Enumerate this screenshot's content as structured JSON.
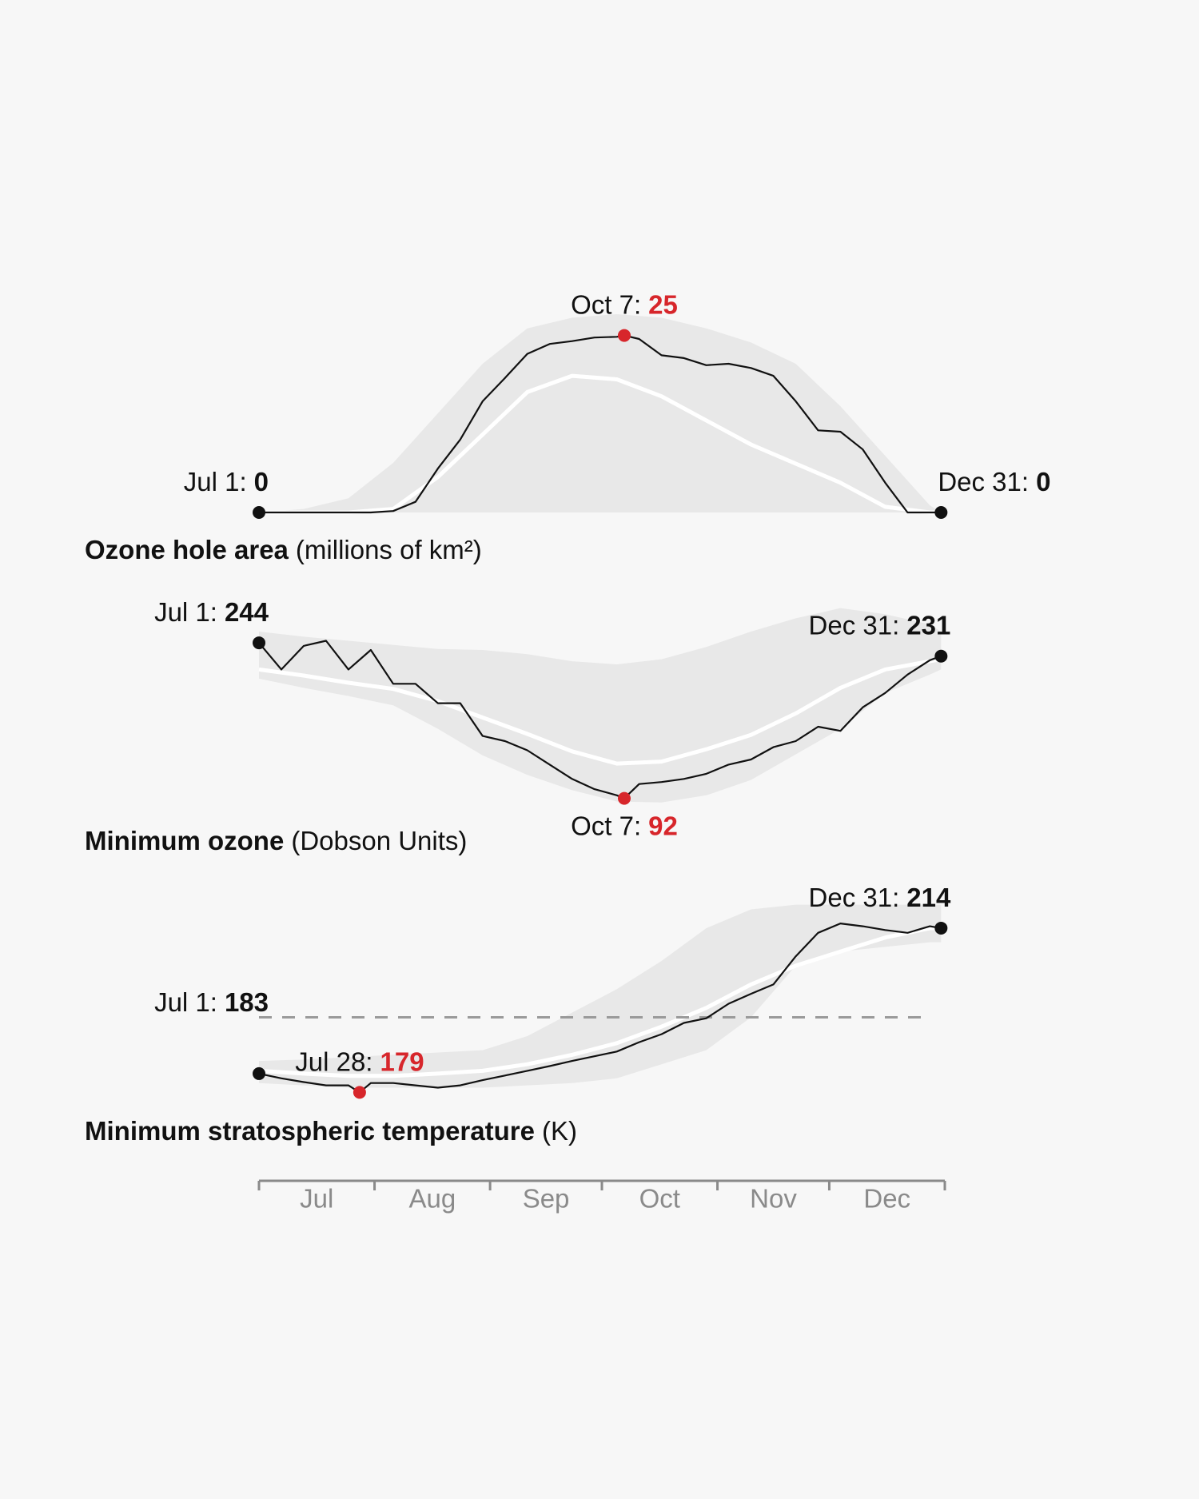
{
  "chart_data": [
    {
      "type": "line",
      "title": "Ozone hole area",
      "unit": "(millions of km²)",
      "color": "#111111",
      "xlim": [
        0,
        184
      ],
      "ylim": [
        0,
        28
      ],
      "x": [
        0,
        6,
        12,
        18,
        24,
        30,
        36,
        42,
        48,
        54,
        60,
        66,
        72,
        78,
        84,
        90,
        96,
        98,
        102,
        108,
        114,
        120,
        126,
        132,
        138,
        144,
        150,
        156,
        162,
        168,
        174,
        180,
        183
      ],
      "values": [
        0,
        0,
        0,
        0,
        0,
        0,
        0.2,
        1.5,
        6.2,
        10.3,
        15.7,
        19,
        22.4,
        23.8,
        24.2,
        24.7,
        24.8,
        25,
        24.5,
        22.2,
        21.8,
        20.8,
        21,
        20.4,
        19.3,
        15.7,
        11.6,
        11.4,
        8.9,
        4.2,
        0,
        0,
        0
      ],
      "band": {
        "color": "#e8e8e8",
        "x": [
          0,
          12,
          24,
          36,
          48,
          60,
          72,
          84,
          96,
          108,
          120,
          132,
          144,
          156,
          168,
          180,
          183
        ],
        "lower": [
          0,
          0,
          0,
          0,
          0,
          0,
          0,
          0,
          0,
          0,
          0,
          0,
          0,
          0,
          0,
          0,
          0
        ],
        "upper": [
          0,
          0.5,
          2,
          7,
          14,
          21,
          26,
          27.5,
          28,
          27.5,
          26,
          24,
          21,
          15,
          8,
          1,
          0
        ]
      },
      "mean": {
        "color": "#ffffff",
        "x": [
          0,
          12,
          24,
          36,
          48,
          60,
          72,
          84,
          96,
          108,
          120,
          132,
          144,
          156,
          168,
          180,
          183
        ],
        "values": [
          0,
          0,
          0,
          0.5,
          5,
          11,
          17,
          19.3,
          18.8,
          16.4,
          13,
          9.6,
          6.9,
          4.2,
          0.8,
          0,
          0
        ]
      },
      "annotations": [
        {
          "label": "Jul 1:",
          "x": 0,
          "value": 0,
          "color": "#111111",
          "anchor": "end",
          "side": "above"
        },
        {
          "label": "Oct 7:",
          "x": 98,
          "value": 25,
          "color": "#d7262b",
          "anchor": "middle",
          "side": "above"
        },
        {
          "label": "Dec 31:",
          "x": 183,
          "value": 0,
          "color": "#111111",
          "anchor": "start",
          "side": "above"
        }
      ]
    },
    {
      "type": "line",
      "title": "Minimum ozone",
      "unit": "(Dobson Units)",
      "color": "#111111",
      "xlim": [
        0,
        184
      ],
      "ylim": [
        80,
        280
      ],
      "x": [
        0,
        6,
        12,
        18,
        24,
        30,
        36,
        42,
        48,
        54,
        60,
        66,
        72,
        78,
        84,
        90,
        96,
        98,
        102,
        108,
        114,
        120,
        126,
        132,
        138,
        144,
        150,
        156,
        162,
        168,
        174,
        180,
        183
      ],
      "values": [
        244,
        218,
        241,
        246,
        218,
        237,
        204,
        204,
        185,
        185,
        153,
        148,
        139,
        125,
        111,
        101,
        95,
        92,
        106,
        108,
        111,
        116,
        125,
        130,
        142,
        148,
        162,
        158,
        181,
        195,
        213,
        227,
        231
      ],
      "band": {
        "color": "#e8e8e8",
        "x": [
          0,
          12,
          24,
          36,
          48,
          60,
          72,
          84,
          96,
          108,
          120,
          132,
          144,
          156,
          168,
          180,
          183
        ],
        "lower": [
          209,
          200,
          192,
          183,
          160,
          134,
          115,
          100,
          89,
          88,
          95,
          110,
          135,
          160,
          195,
          213,
          218
        ],
        "upper": [
          255,
          250,
          246,
          242,
          238,
          237,
          233,
          226,
          223,
          228,
          240,
          255,
          268,
          278,
          272,
          262,
          255
        ]
      },
      "mean": {
        "color": "#ffffff",
        "x": [
          0,
          12,
          24,
          36,
          48,
          60,
          72,
          84,
          96,
          108,
          120,
          132,
          144,
          156,
          168,
          180,
          183
        ],
        "values": [
          218,
          212,
          205,
          199,
          187,
          171,
          155,
          138,
          126,
          128,
          140,
          154,
          175,
          200,
          218,
          226,
          228
        ]
      },
      "annotations": [
        {
          "label": "Jul 1:",
          "x": 0,
          "value": 244,
          "color": "#111111",
          "anchor": "end",
          "side": "above"
        },
        {
          "label": "Oct 7:",
          "x": 98,
          "value": 92,
          "color": "#d7262b",
          "anchor": "middle",
          "side": "below"
        },
        {
          "label": "Dec 31:",
          "x": 183,
          "value": 231,
          "color": "#111111",
          "anchor": "end",
          "side": "above"
        }
      ]
    },
    {
      "type": "line",
      "title": "Minimum stratospheric temperature",
      "unit": "(K)",
      "color": "#111111",
      "xlim": [
        0,
        184
      ],
      "ylim": [
        176,
        222
      ],
      "threshold": 195,
      "xticks": [
        {
          "value": 0,
          "label": "Jul"
        },
        {
          "value": 31,
          "label": "Aug"
        },
        {
          "value": 62,
          "label": "Sep"
        },
        {
          "value": 92,
          "label": "Oct"
        },
        {
          "value": 123,
          "label": "Nov"
        },
        {
          "value": 153,
          "label": "Dec"
        }
      ],
      "x": [
        0,
        6,
        12,
        18,
        24,
        27,
        30,
        36,
        42,
        48,
        54,
        60,
        66,
        72,
        78,
        84,
        90,
        96,
        102,
        108,
        114,
        120,
        126,
        132,
        138,
        144,
        150,
        156,
        162,
        168,
        174,
        180,
        183
      ],
      "values": [
        183,
        182,
        181.2,
        180.5,
        180.5,
        179,
        181,
        181,
        180.5,
        180,
        180.5,
        181.6,
        182.6,
        183.6,
        184.6,
        185.7,
        186.7,
        187.7,
        189.7,
        191.4,
        193.8,
        194.8,
        197.9,
        200,
        202,
        208,
        213,
        215,
        214.4,
        213.6,
        213,
        214.4,
        214
      ],
      "band": {
        "color": "#e8e8e8",
        "x": [
          0,
          12,
          24,
          36,
          48,
          60,
          72,
          84,
          96,
          108,
          120,
          132,
          144,
          156,
          168,
          180,
          183
        ],
        "lower": [
          181,
          180.5,
          180,
          180,
          180,
          180,
          180.5,
          181,
          182,
          185,
          188,
          195,
          206,
          209,
          210,
          211,
          211
        ],
        "upper": [
          185.7,
          186,
          186.5,
          187,
          187.5,
          188,
          191,
          196,
          201,
          207,
          214,
          218,
          219,
          219,
          219,
          219,
          219
        ]
      },
      "mean": {
        "color": "#ffffff",
        "x": [
          0,
          12,
          24,
          36,
          48,
          60,
          72,
          84,
          96,
          108,
          120,
          132,
          144,
          156,
          168,
          180,
          183
        ],
        "values": [
          183.6,
          183,
          182.5,
          182.5,
          183,
          183.6,
          185,
          187,
          189.5,
          193,
          197,
          202,
          206,
          209,
          212,
          214,
          214
        ]
      },
      "annotations": [
        {
          "label": "Jul 1:",
          "x": 0,
          "value": 183,
          "color": "#111111",
          "anchor": "end",
          "side": "high"
        },
        {
          "label": "Jul 28:",
          "x": 27,
          "value": 179,
          "color": "#d7262b",
          "anchor": "middle",
          "side": "above"
        },
        {
          "label": "Dec 31:",
          "x": 183,
          "value": 214,
          "color": "#111111",
          "anchor": "end",
          "side": "above"
        }
      ]
    }
  ]
}
